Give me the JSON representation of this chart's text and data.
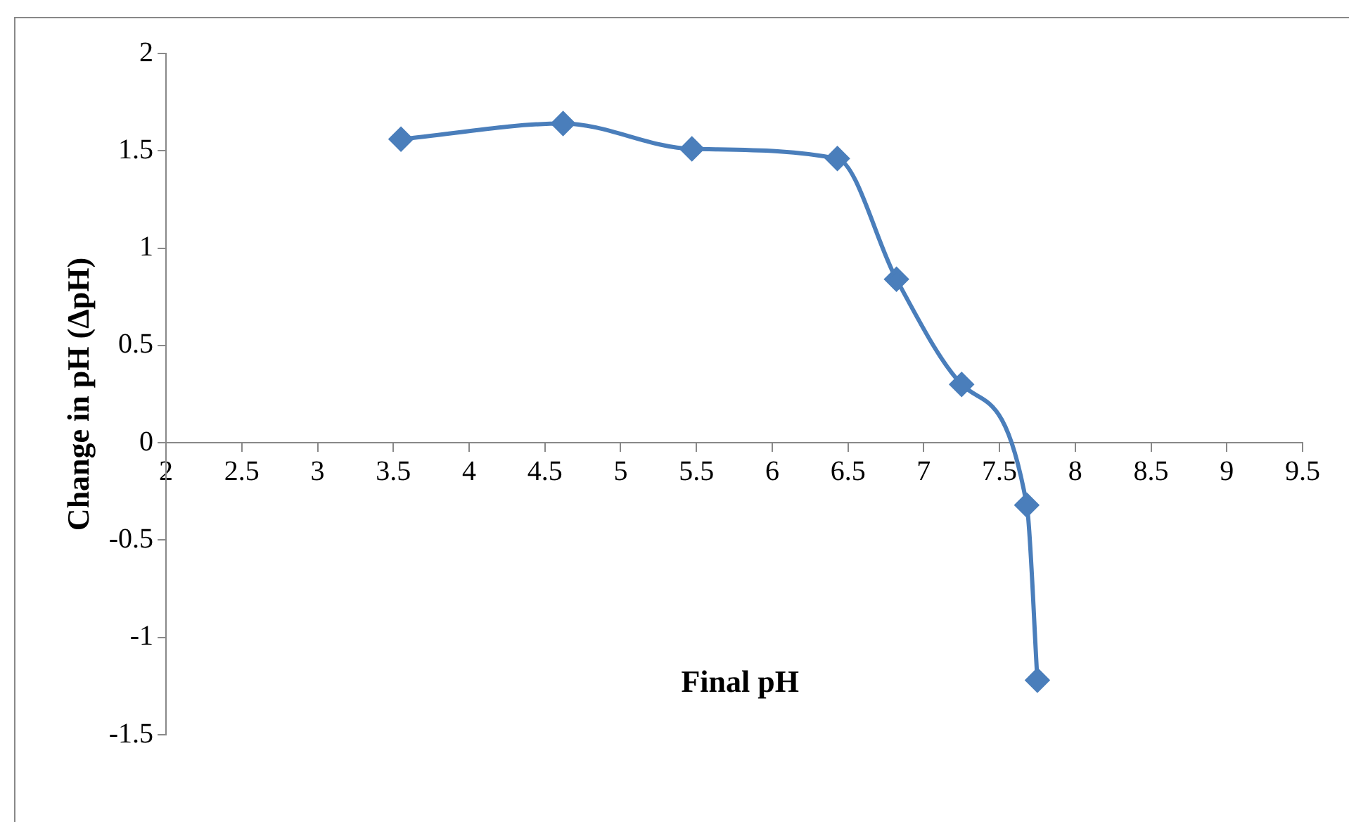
{
  "chart_data": {
    "type": "line",
    "xlabel": "Final pH",
    "ylabel": "Change in pH (ΔpH)",
    "x": [
      3.55,
      4.62,
      5.47,
      6.43,
      6.82,
      7.25,
      7.68,
      7.75
    ],
    "series": [
      {
        "color": "#4a7ebb",
        "values": [
          1.56,
          1.64,
          1.51,
          1.46,
          0.84,
          0.3,
          -0.32,
          -1.22
        ]
      }
    ],
    "xlim": [
      2,
      9.5
    ],
    "xticks": [
      2,
      2.5,
      3,
      3.5,
      4,
      4.5,
      5,
      5.5,
      6,
      6.5,
      7,
      7.5,
      8,
      8.5,
      9,
      9.5
    ],
    "ylim": [
      -1.5,
      2
    ],
    "yticks": [
      -1.5,
      -1,
      -0.5,
      0,
      0.5,
      1,
      1.5,
      2
    ],
    "grid": false,
    "legend": false,
    "marker": "diamond",
    "line_style": "solid"
  }
}
